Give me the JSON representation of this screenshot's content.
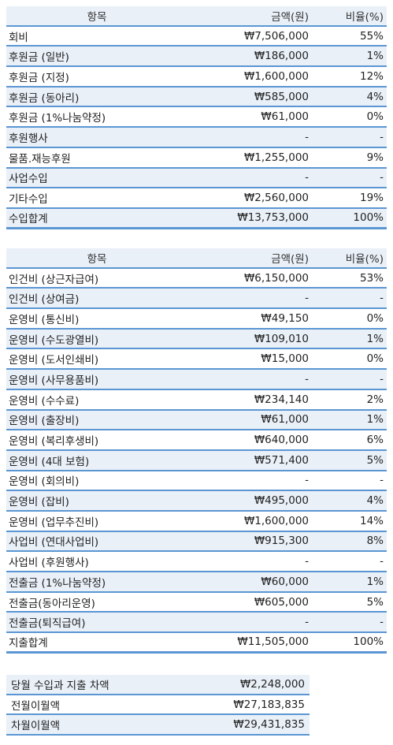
{
  "income": {
    "headers": {
      "item": "항목",
      "amount": "금액(원)",
      "ratio": "비율(%)"
    },
    "rows": [
      {
        "item": "회비",
        "amount": "₩7,506,000",
        "ratio": "55%"
      },
      {
        "item": "후원금 (일반)",
        "amount": "₩186,000",
        "ratio": "1%"
      },
      {
        "item": "후원금 (지정)",
        "amount": "₩1,600,000",
        "ratio": "12%"
      },
      {
        "item": "후원금 (동아리)",
        "amount": "₩585,000",
        "ratio": "4%"
      },
      {
        "item": "후원금 (1%나눔약정)",
        "amount": "₩61,000",
        "ratio": "0%"
      },
      {
        "item": "후원행사",
        "amount": "-",
        "ratio": "-"
      },
      {
        "item": "물품.재능후원",
        "amount": "₩1,255,000",
        "ratio": "9%"
      },
      {
        "item": "사업수입",
        "amount": "-",
        "ratio": "-"
      },
      {
        "item": "기타수입",
        "amount": "₩2,560,000",
        "ratio": "19%"
      }
    ],
    "total": {
      "item": "수입합계",
      "amount": "₩13,753,000",
      "ratio": "100%"
    }
  },
  "expense": {
    "headers": {
      "item": "항목",
      "amount": "금액(원)",
      "ratio": "비율(%)"
    },
    "rows": [
      {
        "item": "인건비 (상근자급여)",
        "amount": "₩6,150,000",
        "ratio": "53%"
      },
      {
        "item": "인건비 (상여금)",
        "amount": "-",
        "ratio": "-"
      },
      {
        "item": "운영비 (통신비)",
        "amount": "₩49,150",
        "ratio": "0%"
      },
      {
        "item": "운영비 (수도광열비)",
        "amount": "₩109,010",
        "ratio": "1%"
      },
      {
        "item": "운영비 (도서인쇄비)",
        "amount": "₩15,000",
        "ratio": "0%"
      },
      {
        "item": "운영비 (사무용품비)",
        "amount": "-",
        "ratio": "-"
      },
      {
        "item": "운영비 (수수료)",
        "amount": "₩234,140",
        "ratio": "2%"
      },
      {
        "item": "운영비 (출장비)",
        "amount": "₩61,000",
        "ratio": "1%"
      },
      {
        "item": "운영비 (복리후생비)",
        "amount": "₩640,000",
        "ratio": "6%"
      },
      {
        "item": "운영비 (4대 보험)",
        "amount": "₩571,400",
        "ratio": "5%"
      },
      {
        "item": "운영비 (회의비)",
        "amount": "-",
        "ratio": "-"
      },
      {
        "item": "운영비 (잡비)",
        "amount": "₩495,000",
        "ratio": "4%"
      },
      {
        "item": "운영비 (업무추진비)",
        "amount": "₩1,600,000",
        "ratio": "14%"
      },
      {
        "item": "사업비 (연대사업비)",
        "amount": "₩915,300",
        "ratio": "8%"
      },
      {
        "item": "사업비 (후원행사)",
        "amount": "-",
        "ratio": "-"
      },
      {
        "item": "전출금 (1%나눔약정)",
        "amount": "₩60,000",
        "ratio": "1%"
      },
      {
        "item": "전출금(동아리운영)",
        "amount": "₩605,000",
        "ratio": "5%"
      },
      {
        "item": "전출금(퇴직급여)",
        "amount": "-",
        "ratio": "-"
      }
    ],
    "total": {
      "item": "지출합계",
      "amount": "₩11,505,000",
      "ratio": "100%"
    }
  },
  "summary": {
    "rows": [
      {
        "item": "당월 수입과 지출 차액",
        "amount": "₩2,248,000"
      },
      {
        "item": "전월이월액",
        "amount": "₩27,183,835"
      },
      {
        "item": "차월이월액",
        "amount": "₩29,431,835"
      }
    ]
  }
}
